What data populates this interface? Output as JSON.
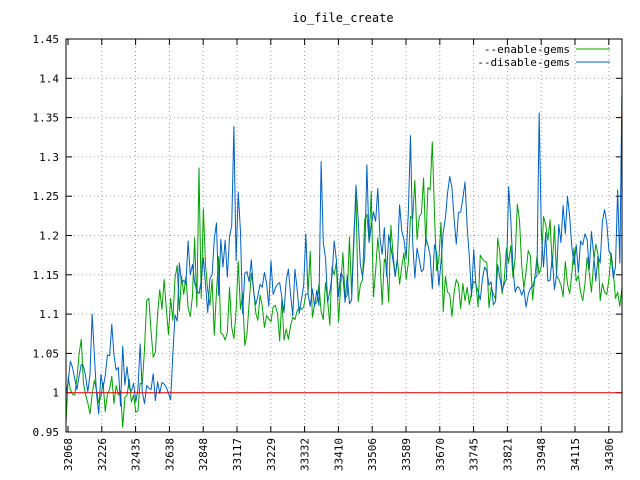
{
  "chart_data": {
    "type": "line",
    "title": "io_file_create",
    "xlabel": "",
    "ylabel": "",
    "ylim": [
      0.95,
      1.45
    ],
    "yticks": [
      "0.95",
      "1",
      "1.05",
      "1.1",
      "1.15",
      "1.2",
      "1.25",
      "1.3",
      "1.35",
      "1.4",
      "1.45"
    ],
    "xticks": [
      "32068",
      "32226",
      "32435",
      "32638",
      "32848",
      "33117",
      "33229",
      "33332",
      "33410",
      "33506",
      "33589",
      "33670",
      "33745",
      "33821",
      "33948",
      "34115",
      "34306"
    ],
    "grid": true,
    "legend": "top-right",
    "baseline": 1,
    "series": [
      {
        "name": "--enable-gems",
        "color": "#00a000",
        "values": [
          0.961,
          1.02,
          1.004,
          0.998,
          0.997,
          1.018,
          1.049,
          1.068,
          1.012,
          0.997,
          0.987,
          0.973,
          0.998,
          1.016,
          1.003,
          0.987,
          0.995,
          1.012,
          0.976,
          0.998,
          1.004,
          1.021,
          0.986,
          1.009,
          0.997,
          1.002,
          0.956,
          0.994,
          0.997,
          1.017,
          0.988,
          0.997,
          0.975,
          0.977,
          1.012,
          1.011,
          1.055,
          1.117,
          1.12,
          1.078,
          1.045,
          1.052,
          1.1,
          1.131,
          1.106,
          1.144,
          1.107,
          1.074,
          1.12,
          1.092,
          1.146,
          1.162,
          1.104,
          1.148,
          1.125,
          1.148,
          1.108,
          1.097,
          1.123,
          1.197,
          1.109,
          1.286,
          1.12,
          1.234,
          1.162,
          1.13,
          1.111,
          1.144,
          1.073,
          1.128,
          1.173,
          1.076,
          1.074,
          1.067,
          1.077,
          1.134,
          1.083,
          1.069,
          1.103,
          1.167,
          1.106,
          1.126,
          1.06,
          1.075,
          1.114,
          1.152,
          1.133,
          1.102,
          1.092,
          1.124,
          1.111,
          1.083,
          1.098,
          1.094,
          1.09,
          1.109,
          1.111,
          1.101,
          1.066,
          1.119,
          1.067,
          1.081,
          1.068,
          1.085,
          1.096,
          1.093,
          1.104,
          1.109,
          1.106,
          1.109,
          1.126,
          1.125,
          1.18,
          1.096,
          1.112,
          1.115,
          1.138,
          1.103,
          1.093,
          1.14,
          1.117,
          1.086,
          1.16,
          1.15,
          1.166,
          1.09,
          1.137,
          1.178,
          1.12,
          1.124,
          1.198,
          1.125,
          1.201,
          1.248,
          1.116,
          1.137,
          1.144,
          1.22,
          1.227,
          1.192,
          1.256,
          1.122,
          1.155,
          1.197,
          1.168,
          1.112,
          1.17,
          1.163,
          1.115,
          1.213,
          1.176,
          1.148,
          1.169,
          1.138,
          1.161,
          1.178,
          1.144,
          1.165,
          1.224,
          1.222,
          1.27,
          1.195,
          1.224,
          1.228,
          1.273,
          1.187,
          1.261,
          1.258,
          1.319,
          1.227,
          1.155,
          1.17,
          1.217,
          1.103,
          1.148,
          1.128,
          1.125,
          1.097,
          1.128,
          1.144,
          1.138,
          1.107,
          1.139,
          1.117,
          1.134,
          1.112,
          1.128,
          1.142,
          1.139,
          1.109,
          1.175,
          1.17,
          1.167,
          1.166,
          1.108,
          1.134,
          1.126,
          1.119,
          1.197,
          1.178,
          1.126,
          1.144,
          1.184,
          1.165,
          1.187,
          1.147,
          1.172,
          1.24,
          1.219,
          1.162,
          1.133,
          1.154,
          1.181,
          1.174,
          1.118,
          1.146,
          1.173,
          1.151,
          1.161,
          1.224,
          1.214,
          1.194,
          1.22,
          1.16,
          1.212,
          1.149,
          1.144,
          1.137,
          1.122,
          1.167,
          1.138,
          1.126,
          1.152,
          1.184,
          1.142,
          1.149,
          1.128,
          1.117,
          1.138,
          1.172,
          1.152,
          1.128,
          1.166,
          1.189,
          1.176,
          1.117,
          1.139,
          1.128,
          1.125,
          1.144,
          1.178,
          1.154,
          1.12,
          1.128,
          1.11,
          1.134
        ]
      },
      {
        "name": "--disable-gems",
        "color": "#0060c0",
        "values": [
          1.0,
          1.013,
          1.04,
          1.032,
          1.018,
          1.004,
          1.021,
          1.036,
          1.034,
          1.021,
          1.001,
          1.023,
          1.1,
          1.048,
          0.999,
          0.973,
          1.023,
          1.006,
          1.022,
          1.048,
          1.047,
          1.087,
          1.048,
          1.029,
          1.032,
          0.983,
          1.059,
          1.01,
          1.033,
          1.006,
          1.002,
          1.012,
          0.988,
          1.004,
          1.062,
          1.001,
          0.986,
          1.009,
          1.006,
          1.004,
          1.024,
          0.99,
          1.014,
          0.999,
          1.013,
          1.011,
          1.007,
          0.999,
          0.991,
          1.049,
          1.099,
          1.091,
          1.165,
          1.14,
          1.143,
          1.138,
          1.193,
          1.15,
          1.163,
          1.14,
          1.13,
          1.126,
          1.142,
          1.172,
          1.137,
          1.102,
          1.145,
          1.15,
          1.195,
          1.216,
          1.124,
          1.195,
          1.16,
          1.194,
          1.147,
          1.199,
          1.212,
          1.339,
          1.168,
          1.255,
          1.206,
          1.101,
          1.152,
          1.154,
          1.141,
          1.169,
          1.129,
          1.112,
          1.123,
          1.138,
          1.134,
          1.153,
          1.139,
          1.11,
          1.168,
          1.125,
          1.133,
          1.138,
          1.14,
          1.121,
          1.102,
          1.143,
          1.157,
          1.125,
          1.098,
          1.157,
          1.132,
          1.101,
          1.119,
          1.136,
          1.202,
          1.126,
          1.11,
          1.132,
          1.11,
          1.13,
          1.111,
          1.294,
          1.191,
          1.172,
          1.115,
          1.129,
          1.148,
          1.193,
          1.169,
          1.122,
          1.152,
          1.148,
          1.115,
          1.149,
          1.113,
          1.118,
          1.19,
          1.264,
          1.221,
          1.163,
          1.147,
          1.173,
          1.29,
          1.191,
          1.212,
          1.23,
          1.218,
          1.26,
          1.197,
          1.176,
          1.21,
          1.148,
          1.201,
          1.185,
          1.168,
          1.148,
          1.172,
          1.239,
          1.206,
          1.195,
          1.171,
          1.229,
          1.327,
          1.191,
          1.146,
          1.184,
          1.17,
          1.154,
          1.157,
          1.197,
          1.188,
          1.174,
          1.132,
          1.188,
          1.178,
          1.136,
          1.166,
          1.204,
          1.222,
          1.254,
          1.275,
          1.261,
          1.221,
          1.189,
          1.229,
          1.23,
          1.247,
          1.268,
          1.211,
          1.172,
          1.122,
          1.182,
          1.137,
          1.129,
          1.118,
          1.145,
          1.16,
          1.155,
          1.137,
          1.141,
          1.112,
          1.116,
          1.163,
          1.146,
          1.13,
          1.138,
          1.145,
          1.262,
          1.22,
          1.158,
          1.128,
          1.135,
          1.133,
          1.124,
          1.132,
          1.109,
          1.125,
          1.133,
          1.135,
          1.145,
          1.149,
          1.356,
          1.205,
          1.16,
          1.204,
          1.142,
          1.143,
          1.174,
          1.131,
          1.15,
          1.214,
          1.191,
          1.238,
          1.202,
          1.25,
          1.224,
          1.185,
          1.163,
          1.188,
          1.153,
          1.193,
          1.188,
          1.202,
          1.195,
          1.157,
          1.205,
          1.176,
          1.142,
          1.174,
          1.165,
          1.218,
          1.233,
          1.216,
          1.181,
          1.174,
          1.146,
          1.16,
          1.258,
          1.165,
          1.39
        ]
      }
    ]
  }
}
